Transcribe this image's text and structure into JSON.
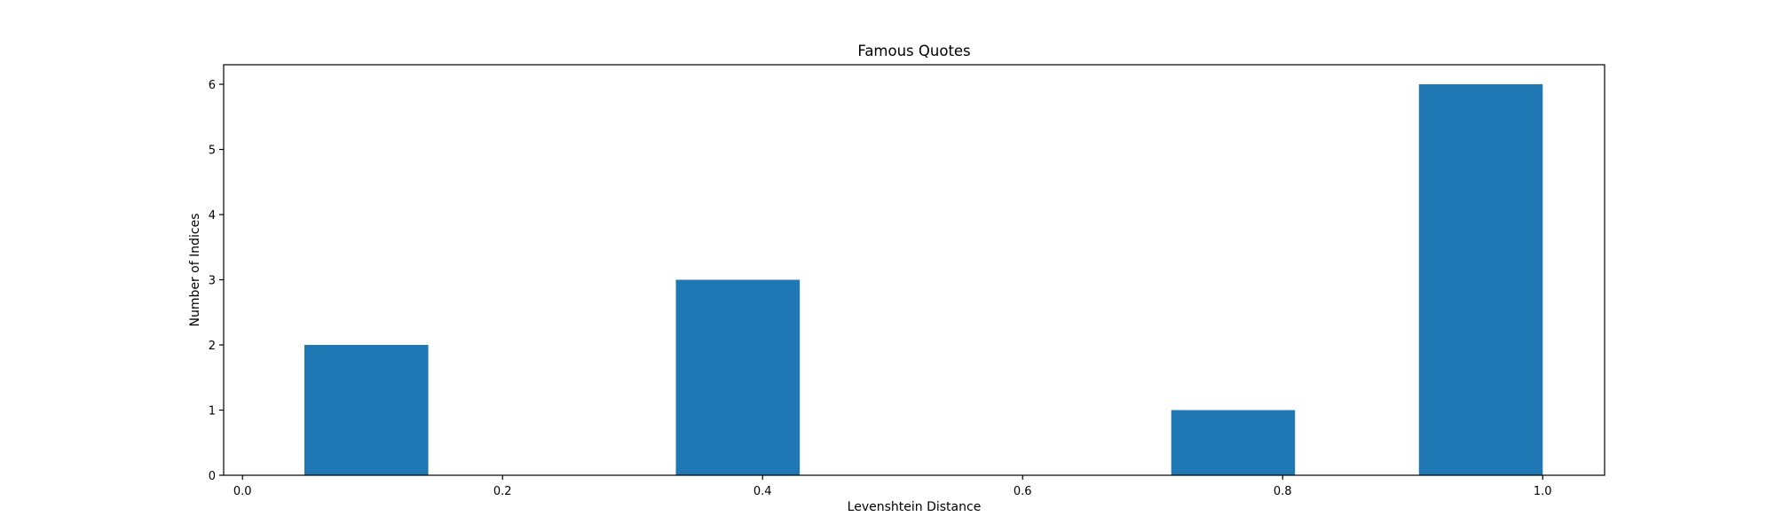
{
  "chart_data": {
    "type": "bar",
    "title": "Famous Quotes",
    "xlabel": "Levenshtein Distance",
    "ylabel": "Number of Indices",
    "bars": [
      {
        "x_start": 0.0476,
        "x_end": 0.1429,
        "value": 2
      },
      {
        "x_start": 0.3333,
        "x_end": 0.4286,
        "value": 3
      },
      {
        "x_start": 0.7143,
        "x_end": 0.8095,
        "value": 1
      },
      {
        "x_start": 0.9048,
        "x_end": 1.0,
        "value": 6
      }
    ],
    "xlim": [
      -0.0145,
      1.0476
    ],
    "ylim": [
      0,
      6.3
    ],
    "xticks": [
      0.0,
      0.2,
      0.4,
      0.6,
      0.8,
      1.0
    ],
    "xtick_labels": [
      "0.0",
      "0.2",
      "0.4",
      "0.6",
      "0.8",
      "1.0"
    ],
    "yticks": [
      0,
      1,
      2,
      3,
      4,
      5,
      6
    ],
    "ytick_labels": [
      "0",
      "1",
      "2",
      "3",
      "4",
      "5",
      "6"
    ],
    "grid": false,
    "legend": "none",
    "bar_color": "#1f77b4"
  }
}
